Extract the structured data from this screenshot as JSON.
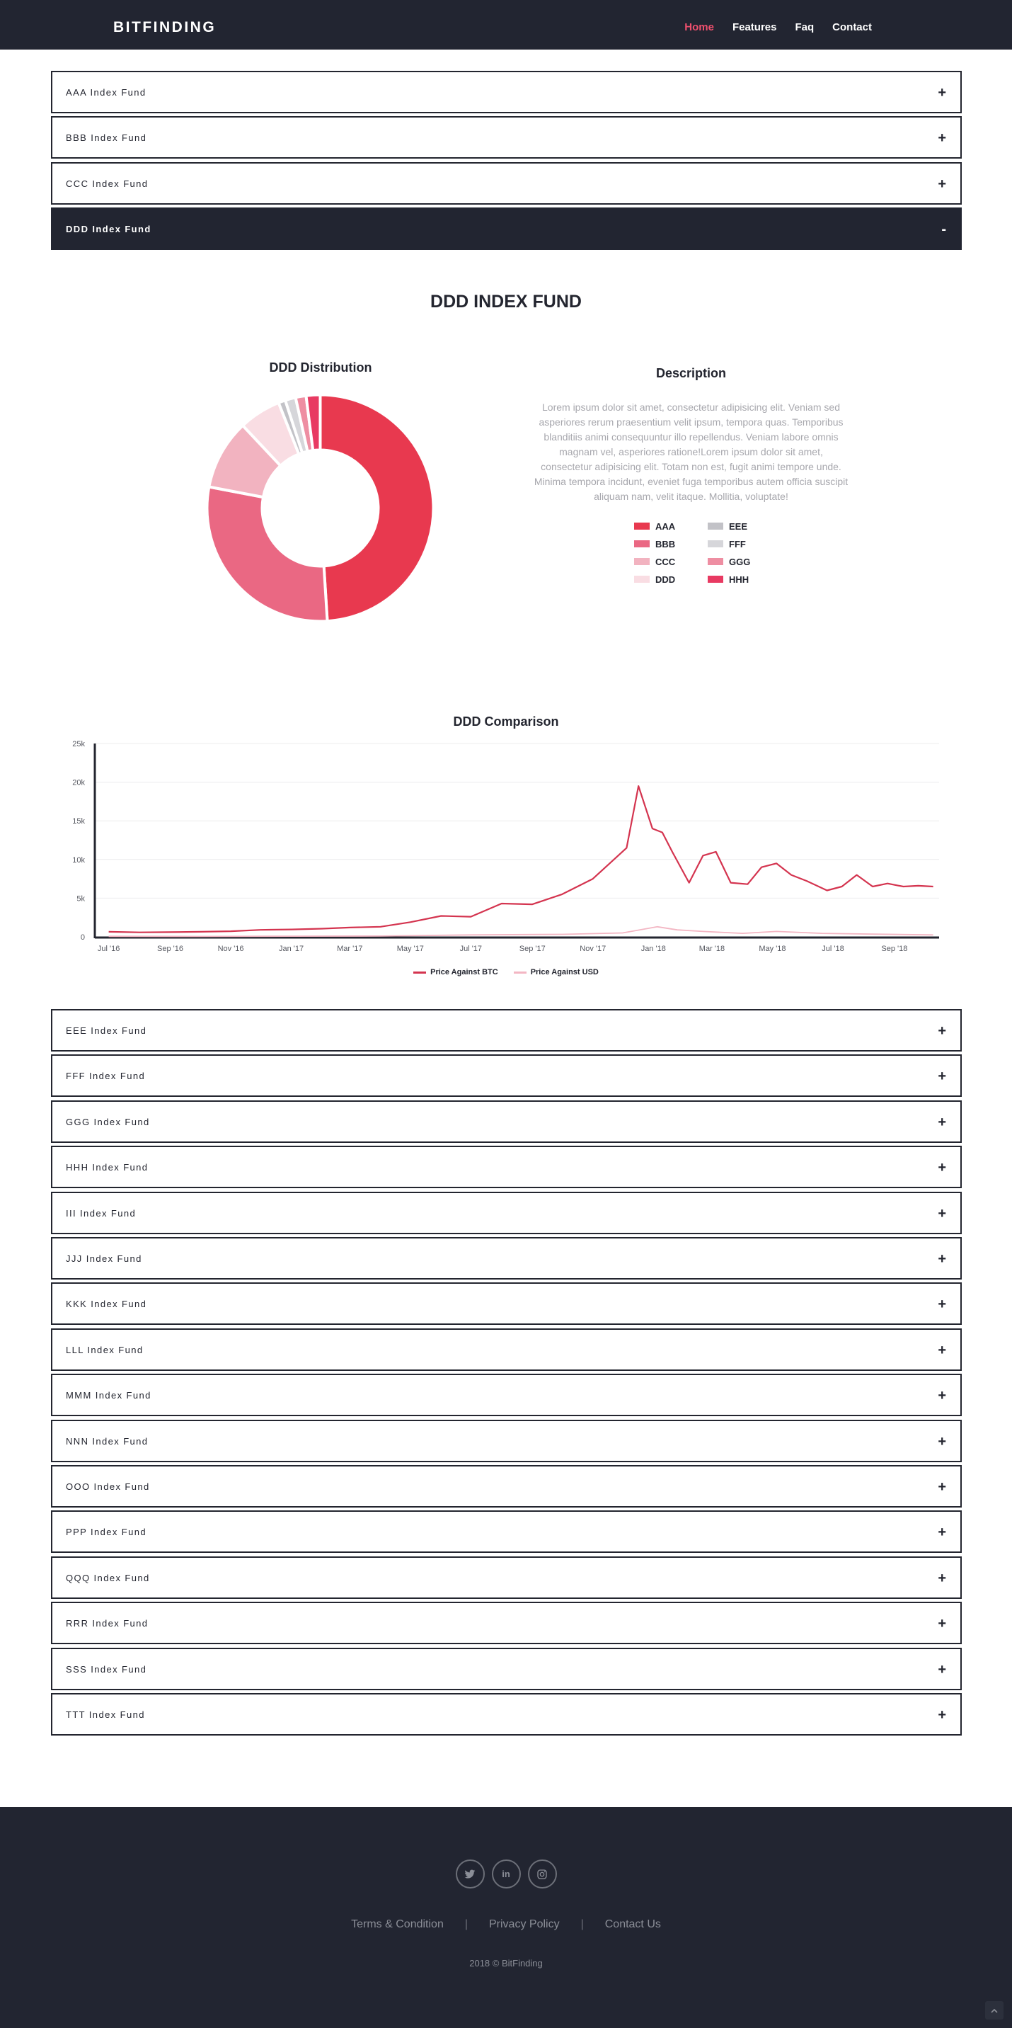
{
  "navbar": {
    "brand": "BITFINDING",
    "links": [
      {
        "label": "Home",
        "active": true
      },
      {
        "label": "Features",
        "active": false
      },
      {
        "label": "Faq",
        "active": false
      },
      {
        "label": "Contact",
        "active": false
      }
    ]
  },
  "accordion_top": [
    {
      "label": "AAA Index Fund",
      "sign": "+"
    },
    {
      "label": "BBB Index Fund",
      "sign": "+"
    },
    {
      "label": "CCC Index Fund",
      "sign": "+"
    },
    {
      "label": "DDD Index Fund",
      "sign": "-"
    }
  ],
  "fund": {
    "title": "DDD INDEX FUND",
    "distribution_title": "DDD Distribution",
    "description_title": "Description",
    "description": "Lorem ipsum dolor sit amet, consectetur adipisicing elit. Veniam sed asperiores rerum praesentium velit ipsum, tempora quas. Temporibus blanditiis animi consequuntur illo repellendus. Veniam labore omnis magnam vel, asperiores ratione!Lorem ipsum dolor sit amet, consectetur adipisicing elit. Totam non est, fugit animi tempore unde. Minima tempora incidunt, eveniet fuga temporibus autem officia suscipit aliquam nam, velit itaque. Mollitia, voluptate!",
    "legend": [
      {
        "label": "AAA",
        "color": "#e8394f"
      },
      {
        "label": "EEE",
        "color": "#c2c2c7"
      },
      {
        "label": "BBB",
        "color": "#ea6883"
      },
      {
        "label": "FFF",
        "color": "#d6d6da"
      },
      {
        "label": "CCC",
        "color": "#f2b3c0"
      },
      {
        "label": "GGG",
        "color": "#ee8ea2"
      },
      {
        "label": "DDD",
        "color": "#f9dde3"
      },
      {
        "label": "HHH",
        "color": "#e83a62"
      }
    ],
    "comparison_title": "DDD Comparison"
  },
  "chart_data": [
    {
      "type": "pie",
      "title": "DDD Distribution",
      "categories": [
        "AAA",
        "BBB",
        "CCC",
        "DDD",
        "EEE",
        "FFF",
        "GGG",
        "HHH"
      ],
      "values": [
        49,
        29,
        10,
        6,
        1,
        1.5,
        1.5,
        2
      ],
      "colors": [
        "#e8394f",
        "#ea6883",
        "#f2b3c0",
        "#f9dde3",
        "#c2c2c7",
        "#d6d6da",
        "#ee8ea2",
        "#e83a62"
      ]
    },
    {
      "type": "line",
      "title": "DDD Comparison",
      "ylim": [
        0,
        25000
      ],
      "y_ticks": [
        "0",
        "5k",
        "10k",
        "15k",
        "20k",
        "25k"
      ],
      "x_ticks": [
        "Jul '16",
        "Sep '16",
        "Nov '16",
        "Jan '17",
        "Mar '17",
        "May '17",
        "Jul '17",
        "Sep '17",
        "Nov '17",
        "Jan '18",
        "Mar '18",
        "May '18",
        "Jul '18",
        "Sep '18"
      ],
      "grid": true,
      "legend_position": "bottom",
      "series": [
        {
          "name": "Price Against BTC",
          "color": "#d4344f",
          "x": [
            "2016-07",
            "2016-08",
            "2016-09",
            "2016-10",
            "2016-11",
            "2016-12",
            "2017-01",
            "2017-02",
            "2017-03",
            "2017-04",
            "2017-05",
            "2017-06",
            "2017-07",
            "2017-08",
            "2017-09",
            "2017-10",
            "2017-11",
            "2017-12-05",
            "2017-12-17",
            "2017-12-31",
            "2018-01-10",
            "2018-01-20",
            "2018-02-06",
            "2018-02-20",
            "2018-03-05",
            "2018-03-20",
            "2018-04-06",
            "2018-04-20",
            "2018-05-05",
            "2018-05-20",
            "2018-06-05",
            "2018-06-25",
            "2018-07-10",
            "2018-07-25",
            "2018-08-10",
            "2018-08-25",
            "2018-09-10",
            "2018-09-25",
            "2018-10-10"
          ],
          "values": [
            650,
            580,
            600,
            650,
            720,
            900,
            950,
            1050,
            1200,
            1300,
            1900,
            2700,
            2600,
            4300,
            4200,
            5500,
            7500,
            11500,
            19500,
            14000,
            13500,
            11000,
            7000,
            10500,
            11000,
            7000,
            6800,
            9000,
            9500,
            8000,
            7200,
            6000,
            6500,
            8000,
            6500,
            6900,
            6500,
            6600,
            6500
          ]
        },
        {
          "name": "Price Against USD",
          "color": "#f3b6c3",
          "x": [
            "2016-07",
            "2016-10",
            "2017-01",
            "2017-04",
            "2017-07",
            "2017-10",
            "2017-12-01",
            "2018-01-05",
            "2018-01-25",
            "2018-02-20",
            "2018-04-01",
            "2018-05-05",
            "2018-06-20",
            "2018-08-10",
            "2018-10-10"
          ],
          "values": [
            60,
            50,
            80,
            100,
            250,
            320,
            500,
            1300,
            900,
            700,
            450,
            700,
            450,
            350,
            250
          ]
        }
      ]
    }
  ],
  "accordion_bottom": [
    {
      "label": "EEE Index Fund",
      "sign": "+"
    },
    {
      "label": "FFF Index Fund",
      "sign": "+"
    },
    {
      "label": "GGG Index Fund",
      "sign": "+"
    },
    {
      "label": "HHH Index Fund",
      "sign": "+"
    },
    {
      "label": "III Index Fund",
      "sign": "+"
    },
    {
      "label": "JJJ Index Fund",
      "sign": "+"
    },
    {
      "label": "KKK Index Fund",
      "sign": "+"
    },
    {
      "label": "LLL Index Fund",
      "sign": "+"
    },
    {
      "label": "MMM Index Fund",
      "sign": "+"
    },
    {
      "label": "NNN Index Fund",
      "sign": "+"
    },
    {
      "label": "OOO Index Fund",
      "sign": "+"
    },
    {
      "label": "PPP Index Fund",
      "sign": "+"
    },
    {
      "label": "QQQ Index Fund",
      "sign": "+"
    },
    {
      "label": "RRR Index Fund",
      "sign": "+"
    },
    {
      "label": "SSS Index Fund",
      "sign": "+"
    },
    {
      "label": "TTT Index Fund",
      "sign": "+"
    }
  ],
  "footer": {
    "social_icons": [
      "twitter-icon",
      "linkedin-icon",
      "instagram-icon"
    ],
    "links": [
      "Terms & Condition",
      "Privacy Policy",
      "Contact Us"
    ],
    "separator": "|",
    "copyright": "2018 © BitFinding",
    "scroll_top_icon": "chevron-up-icon"
  }
}
